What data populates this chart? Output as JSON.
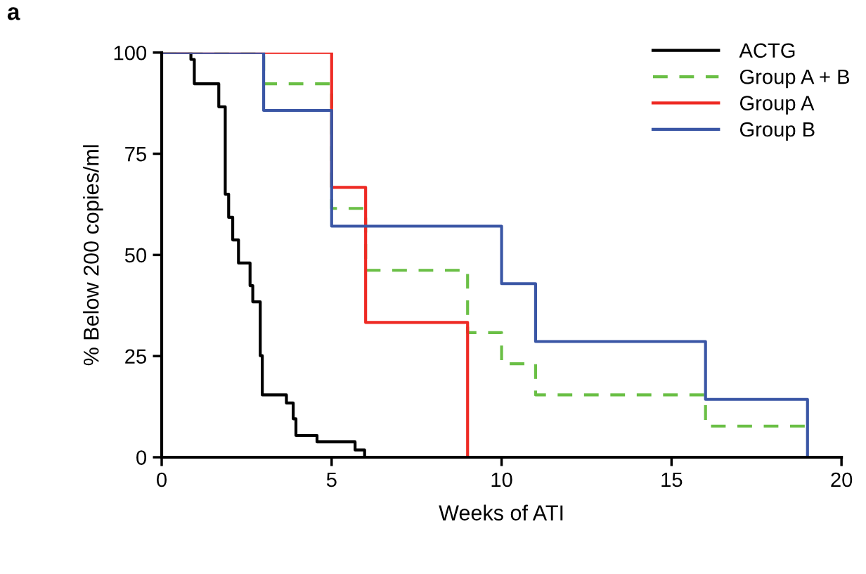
{
  "chart_data": {
    "type": "step",
    "xlabel": "Weeks of ATI",
    "ylabel": "% Below 200 copies/ml",
    "annotations": [
      "a"
    ],
    "xlim": [
      0,
      20
    ],
    "xticks": [
      0,
      5,
      10,
      15,
      20
    ],
    "ylim": [
      0,
      100
    ],
    "yticks": [
      0,
      25,
      50,
      75,
      100
    ],
    "grid": false,
    "legend": "top right",
    "series": [
      {
        "name": "ACTG",
        "color": "#000000",
        "line_style": "solid",
        "x": [
          0,
          0.86,
          0.96,
          1.68,
          1.87,
          1.97,
          2.09,
          2.26,
          2.6,
          2.68,
          2.9,
          2.96,
          3.67,
          3.87,
          3.95,
          4.57,
          5.69,
          5.97
        ],
        "values": [
          100,
          98.3,
          92.3,
          86.6,
          65,
          59.3,
          53.7,
          48,
          42.4,
          38.4,
          25.1,
          15.4,
          13.4,
          9.5,
          5.4,
          3.8,
          1.8,
          0
        ]
      },
      {
        "name": "Group A + B",
        "color": "#6abf45",
        "line_style": "dashed",
        "x": [
          0,
          3,
          5,
          6,
          9,
          10,
          11,
          16,
          19
        ],
        "values": [
          100,
          92.3,
          61.5,
          46.2,
          30.8,
          23.1,
          15.4,
          7.7,
          7.7
        ]
      },
      {
        "name": "Group A",
        "color": "#ee2a24",
        "line_style": "solid",
        "x": [
          0,
          5,
          6,
          9
        ],
        "values": [
          100,
          66.7,
          33.3,
          0
        ]
      },
      {
        "name": "Group B",
        "color": "#3a56a5",
        "line_style": "solid",
        "x": [
          0,
          3,
          5,
          10,
          11,
          16,
          19
        ],
        "values": [
          100,
          85.7,
          57.1,
          42.9,
          28.6,
          14.3,
          0
        ]
      }
    ]
  }
}
